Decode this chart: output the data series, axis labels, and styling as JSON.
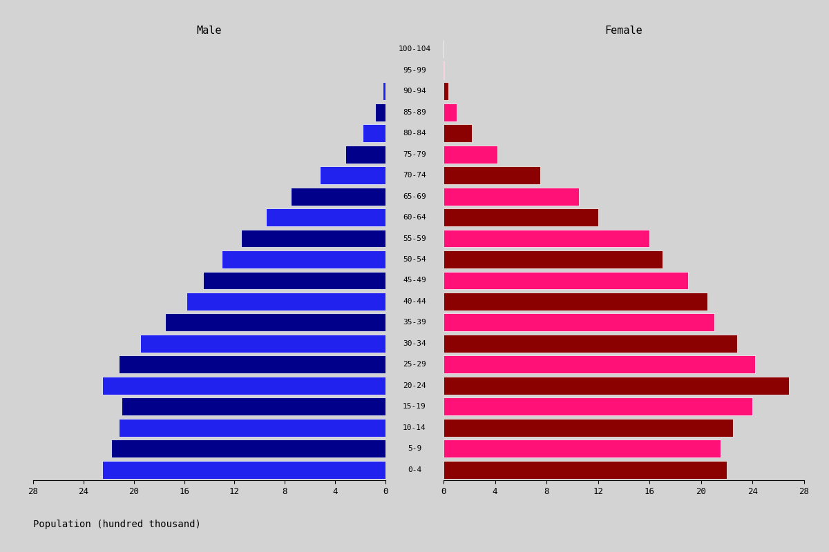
{
  "title_male": "Male",
  "title_female": "Female",
  "xlabel": "Population (hundred thousand)",
  "age_groups": [
    "0-4",
    "5-9",
    "10-14",
    "15-19",
    "20-24",
    "25-29",
    "30-34",
    "35-39",
    "40-44",
    "45-49",
    "50-54",
    "55-59",
    "60-64",
    "65-69",
    "70-74",
    "75-79",
    "80-84",
    "85-89",
    "90-94",
    "95-99",
    "100-104"
  ],
  "male_values": [
    22.5,
    21.8,
    21.2,
    21.0,
    22.5,
    21.2,
    19.5,
    17.5,
    15.8,
    14.5,
    13.0,
    11.5,
    9.5,
    7.5,
    5.2,
    3.2,
    1.8,
    0.8,
    0.2,
    0.05,
    0.01
  ],
  "female_values": [
    22.0,
    21.5,
    22.5,
    24.0,
    26.8,
    24.2,
    22.8,
    21.0,
    20.5,
    19.0,
    17.0,
    16.0,
    12.0,
    10.5,
    7.5,
    4.2,
    2.2,
    1.0,
    0.35,
    0.08,
    0.01
  ],
  "male_colors": [
    "#2222EE",
    "#00008B",
    "#2222EE",
    "#00008B",
    "#2222EE",
    "#00008B",
    "#2222EE",
    "#00008B",
    "#2222EE",
    "#00008B",
    "#2222EE",
    "#00008B",
    "#2222EE",
    "#00008B",
    "#2222EE",
    "#00008B",
    "#2222EE",
    "#00008B",
    "#2222EE",
    "#00008B",
    "#2222EE"
  ],
  "female_colors": [
    "#8B0000",
    "#FF1177",
    "#8B0000",
    "#FF1177",
    "#8B0000",
    "#FF1177",
    "#8B0000",
    "#FF1177",
    "#8B0000",
    "#FF1177",
    "#8B0000",
    "#FF1177",
    "#8B0000",
    "#FF1177",
    "#8B0000",
    "#FF1177",
    "#8B0000",
    "#FF1177",
    "#8B0000",
    "#FF1177",
    "#8B0000"
  ],
  "xlim": 28,
  "xticks": [
    0,
    4,
    8,
    12,
    16,
    20,
    24,
    28
  ],
  "background_color": "#D3D3D3",
  "bar_height": 0.85,
  "title_fontsize": 11,
  "label_fontsize": 8,
  "tick_fontsize": 9
}
